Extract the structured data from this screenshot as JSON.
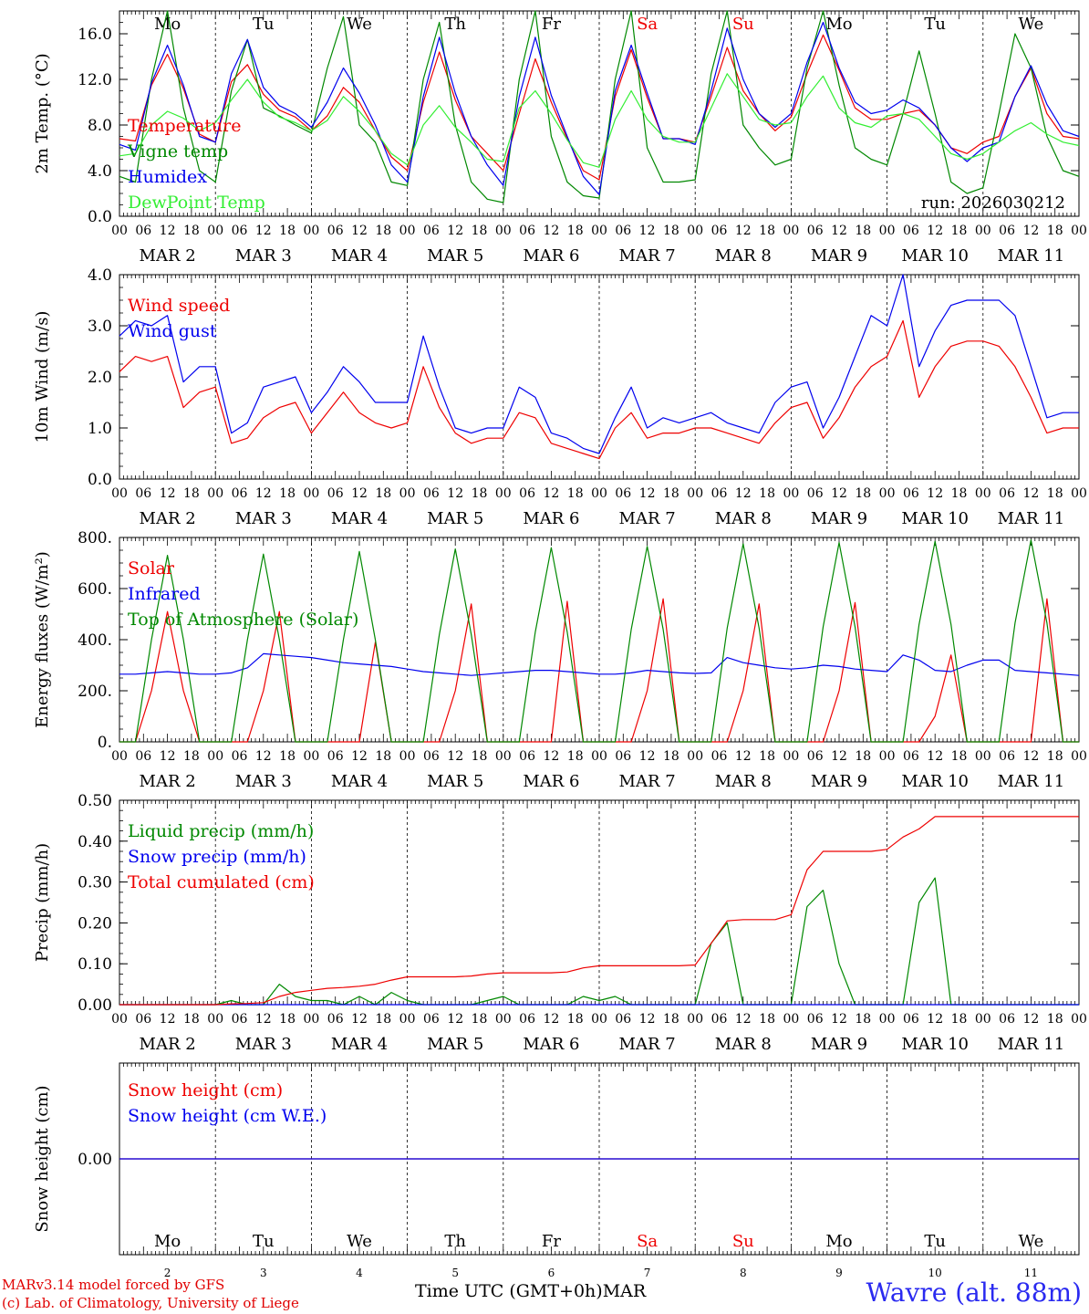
{
  "footer": {
    "credit_line1": "MARv3.14 model forced by GFS",
    "credit_line2": "(c) Lab. of Climatology, University of Liege",
    "xaxis_title": "Time UTC (GMT+0h)",
    "xaxis_month": "MAR",
    "station": "Wavre (alt. 88m)"
  },
  "colors": {
    "red": "#ee0000",
    "blue": "#0000ee",
    "green": "#008800",
    "lightgreen": "#33ee33",
    "weekend": "#ee0000"
  },
  "timeline": {
    "days": [
      {
        "weekday": "Mo",
        "date": "MAR 2",
        "num": "2",
        "weekend": false
      },
      {
        "weekday": "Tu",
        "date": "MAR 3",
        "num": "3",
        "weekend": false
      },
      {
        "weekday": "We",
        "date": "MAR 4",
        "num": "4",
        "weekend": false
      },
      {
        "weekday": "Th",
        "date": "MAR 5",
        "num": "5",
        "weekend": false
      },
      {
        "weekday": "Fr",
        "date": "MAR 6",
        "num": "6",
        "weekend": false
      },
      {
        "weekday": "Sa",
        "date": "MAR 7",
        "num": "7",
        "weekend": true
      },
      {
        "weekday": "Su",
        "date": "MAR 8",
        "num": "8",
        "weekend": true
      },
      {
        "weekday": "Mo",
        "date": "MAR 9",
        "num": "9",
        "weekend": false
      },
      {
        "weekday": "Tu",
        "date": "MAR 10",
        "num": "10",
        "weekend": false
      },
      {
        "weekday": "We",
        "date": "MAR 11",
        "num": "11",
        "weekend": false
      }
    ],
    "hour_ticks": [
      "00",
      "06",
      "12",
      "18"
    ],
    "final_tick": "00",
    "step_hours": 6
  },
  "chart_data": [
    {
      "type": "line",
      "id": "temp",
      "ylabel": "2m Temp. (°C)",
      "ylim": [
        0,
        18
      ],
      "yticks": [
        0,
        4,
        8,
        12,
        16
      ],
      "ytick_labels": [
        "0.0",
        "4.0",
        "8.0",
        "12.0",
        "16.0"
      ],
      "show_weekdays": true,
      "annotation": "run: 2026030212",
      "legend": [
        "Temperature",
        "Vigne temp",
        "Humidex",
        "DewPoint Temp"
      ],
      "series": [
        {
          "name": "Temperature",
          "color": "red",
          "values": [
            6.8,
            6.6,
            11.5,
            14.2,
            11.2,
            7.2,
            6.5,
            11.8,
            13.3,
            10.7,
            9.3,
            8.7,
            7.5,
            8.8,
            11.3,
            10.0,
            7.5,
            5.2,
            4.0,
            10.0,
            14.4,
            10.2,
            7.0,
            5.5,
            4.0,
            9.0,
            13.8,
            10.0,
            6.8,
            4.0,
            3.2,
            10.5,
            14.6,
            10.4,
            6.8,
            6.8,
            6.5,
            10.5,
            14.8,
            11.0,
            9.0,
            7.5,
            8.7,
            12.5,
            15.9,
            12.8,
            9.5,
            8.5,
            8.5,
            9.0,
            9.3,
            8.0,
            6.0,
            5.5,
            6.5,
            7.0,
            10.5,
            13.0,
            9.0,
            7.0,
            6.8
          ]
        },
        {
          "name": "Vigne temp",
          "color": "green",
          "values": [
            3.5,
            3.0,
            12.0,
            18.0,
            9.5,
            4.0,
            3.0,
            11.0,
            15.5,
            9.5,
            8.8,
            8.0,
            7.3,
            13.0,
            17.5,
            8.0,
            6.5,
            3.0,
            2.7,
            12.0,
            17.0,
            8.0,
            3.0,
            1.5,
            1.2,
            12.0,
            18.0,
            7.0,
            3.0,
            1.8,
            1.6,
            12.0,
            18.0,
            6.0,
            3.0,
            3.0,
            3.2,
            12.5,
            18.0,
            8.0,
            6.0,
            4.5,
            5.0,
            13.0,
            18.0,
            11.5,
            6.0,
            5.0,
            4.5,
            9.0,
            14.5,
            9.0,
            3.0,
            2.0,
            2.5,
            9.0,
            16.0,
            13.0,
            7.0,
            4.0,
            3.5
          ]
        },
        {
          "name": "Humidex",
          "color": "blue",
          "values": [
            6.3,
            5.8,
            11.7,
            15.0,
            11.5,
            7.0,
            6.5,
            12.5,
            15.5,
            11.3,
            9.7,
            9.0,
            7.8,
            10.0,
            13.0,
            10.8,
            8.0,
            4.5,
            3.0,
            10.5,
            15.7,
            10.8,
            7.0,
            4.5,
            2.7,
            10.5,
            15.7,
            10.6,
            7.0,
            3.5,
            1.9,
            11.0,
            15.0,
            10.8,
            6.8,
            6.8,
            6.3,
            11.0,
            16.5,
            12.0,
            9.0,
            7.8,
            9.0,
            13.5,
            17.0,
            13.0,
            10.0,
            9.0,
            9.3,
            10.2,
            9.5,
            8.0,
            6.0,
            4.8,
            6.0,
            6.5,
            10.5,
            13.2,
            9.8,
            7.5,
            7.0
          ]
        },
        {
          "name": "DewPoint Temp",
          "color": "lightgreen",
          "values": [
            5.3,
            5.5,
            8.0,
            9.2,
            8.6,
            7.5,
            8.2,
            10.2,
            12.0,
            10.0,
            8.7,
            8.2,
            7.5,
            8.4,
            10.5,
            9.2,
            7.5,
            5.5,
            4.5,
            8.0,
            9.7,
            7.8,
            6.5,
            5.0,
            4.8,
            9.5,
            11.0,
            9.0,
            6.7,
            4.7,
            4.3,
            8.5,
            11.0,
            8.5,
            7.0,
            6.5,
            6.5,
            9.5,
            12.5,
            10.5,
            8.5,
            8.0,
            8.2,
            10.5,
            12.3,
            9.5,
            8.2,
            7.8,
            8.8,
            9.0,
            8.5,
            7.0,
            5.5,
            5.0,
            5.5,
            6.5,
            7.5,
            8.2,
            7.2,
            6.5,
            6.2
          ]
        }
      ]
    },
    {
      "type": "line",
      "id": "wind",
      "ylabel": "10m Wind (m/s)",
      "ylim": [
        0,
        4
      ],
      "yticks": [
        0,
        1,
        2,
        3,
        4
      ],
      "ytick_labels": [
        "0.0",
        "1.0",
        "2.0",
        "3.0",
        "4.0"
      ],
      "legend": [
        "Wind speed",
        "Wind gust"
      ],
      "series": [
        {
          "name": "Wind speed",
          "color": "red",
          "values": [
            2.1,
            2.4,
            2.3,
            2.4,
            1.4,
            1.7,
            1.8,
            0.7,
            0.8,
            1.2,
            1.4,
            1.5,
            0.9,
            1.3,
            1.7,
            1.3,
            1.1,
            1.0,
            1.1,
            2.2,
            1.4,
            0.9,
            0.7,
            0.8,
            0.8,
            1.3,
            1.2,
            0.7,
            0.6,
            0.5,
            0.4,
            1.0,
            1.3,
            0.8,
            0.9,
            0.9,
            1.0,
            1.0,
            0.9,
            0.8,
            0.7,
            1.1,
            1.4,
            1.5,
            0.8,
            1.2,
            1.8,
            2.2,
            2.4,
            3.1,
            1.6,
            2.2,
            2.6,
            2.7,
            2.7,
            2.6,
            2.2,
            1.6,
            0.9,
            1.0,
            1.0
          ]
        },
        {
          "name": "Wind gust",
          "color": "blue",
          "values": [
            2.8,
            3.1,
            3.0,
            3.2,
            1.9,
            2.2,
            2.2,
            0.9,
            1.1,
            1.8,
            1.9,
            2.0,
            1.3,
            1.7,
            2.2,
            1.9,
            1.5,
            1.5,
            1.5,
            2.8,
            1.8,
            1.0,
            0.9,
            1.0,
            1.0,
            1.8,
            1.6,
            0.9,
            0.8,
            0.6,
            0.5,
            1.2,
            1.8,
            1.0,
            1.2,
            1.1,
            1.2,
            1.3,
            1.1,
            1.0,
            0.9,
            1.5,
            1.8,
            1.9,
            1.0,
            1.6,
            2.4,
            3.2,
            3.0,
            4.0,
            2.2,
            2.9,
            3.4,
            3.5,
            3.5,
            3.5,
            3.2,
            2.2,
            1.2,
            1.3,
            1.3
          ]
        }
      ]
    },
    {
      "type": "line",
      "id": "flux",
      "ylabel": "Energy fluxes (W/m²)",
      "ylim": [
        0,
        800
      ],
      "yticks": [
        0,
        200,
        400,
        600,
        800
      ],
      "ytick_labels": [
        "0.",
        "200.",
        "400.",
        "600.",
        "800."
      ],
      "legend": [
        "Solar",
        "Infrared",
        "Top of Atmosphere (Solar)"
      ],
      "series": [
        {
          "name": "Solar",
          "color": "red",
          "values": [
            0,
            0,
            200,
            510,
            200,
            0,
            0,
            0,
            0,
            200,
            510,
            0,
            0,
            0,
            0,
            0,
            390,
            0,
            0,
            0,
            0,
            200,
            540,
            0,
            0,
            0,
            0,
            0,
            550,
            0,
            0,
            0,
            0,
            200,
            560,
            0,
            0,
            0,
            0,
            200,
            540,
            0,
            0,
            0,
            0,
            200,
            545,
            0,
            0,
            0,
            0,
            100,
            340,
            0,
            0,
            0,
            0,
            0,
            560,
            0,
            0
          ]
        },
        {
          "name": "Infrared",
          "color": "blue",
          "values": [
            265,
            265,
            270,
            275,
            270,
            265,
            265,
            270,
            290,
            345,
            340,
            335,
            330,
            320,
            310,
            305,
            300,
            295,
            285,
            275,
            270,
            265,
            260,
            265,
            270,
            275,
            280,
            280,
            275,
            270,
            265,
            265,
            270,
            280,
            275,
            270,
            268,
            270,
            330,
            310,
            300,
            290,
            285,
            290,
            300,
            295,
            285,
            280,
            275,
            340,
            320,
            280,
            275,
            300,
            320,
            320,
            280,
            275,
            270,
            265,
            260
          ]
        },
        {
          "name": "Top of Atmosphere (Solar)",
          "color": "green",
          "values": [
            0,
            0,
            400,
            730,
            400,
            0,
            0,
            0,
            400,
            735,
            400,
            0,
            0,
            0,
            400,
            745,
            400,
            0,
            0,
            0,
            420,
            755,
            420,
            0,
            0,
            0,
            430,
            760,
            430,
            0,
            0,
            0,
            440,
            765,
            440,
            0,
            0,
            0,
            445,
            775,
            445,
            0,
            0,
            0,
            450,
            780,
            450,
            0,
            0,
            0,
            460,
            785,
            460,
            0,
            0,
            0,
            465,
            790,
            465,
            0,
            0
          ]
        }
      ]
    },
    {
      "type": "line",
      "id": "precip",
      "ylabel": "Precip (mm/h)",
      "ylim": [
        0,
        0.5
      ],
      "yticks": [
        0,
        0.1,
        0.2,
        0.3,
        0.4,
        0.5
      ],
      "ytick_labels": [
        "0.00",
        "0.10",
        "0.20",
        "0.30",
        "0.40",
        "0.50"
      ],
      "legend": [
        "Liquid precip (mm/h)",
        "Snow precip (mm/h)",
        "Total cumulated (cm)"
      ],
      "series": [
        {
          "name": "Liquid precip (mm/h)",
          "color": "green",
          "values": [
            0,
            0,
            0,
            0,
            0,
            0,
            0,
            0.01,
            0,
            0,
            0.05,
            0.02,
            0.01,
            0.01,
            0,
            0.02,
            0,
            0.03,
            0.01,
            0,
            0,
            0,
            0,
            0.01,
            0.02,
            0,
            0,
            0,
            0,
            0.02,
            0.01,
            0.02,
            0,
            0,
            0,
            0,
            0,
            0.15,
            0.2,
            0,
            0,
            0,
            0,
            0.24,
            0.28,
            0.1,
            0,
            0,
            0,
            0,
            0.25,
            0.31,
            0,
            0,
            0,
            0,
            0,
            0,
            0,
            0,
            0
          ]
        },
        {
          "name": "Snow precip (mm/h)",
          "color": "blue",
          "values": [
            0,
            0,
            0,
            0,
            0,
            0,
            0,
            0,
            0,
            0,
            0,
            0,
            0,
            0,
            0,
            0,
            0,
            0,
            0,
            0,
            0,
            0,
            0,
            0,
            0,
            0,
            0,
            0,
            0,
            0,
            0,
            0,
            0,
            0,
            0,
            0,
            0,
            0,
            0,
            0,
            0,
            0,
            0,
            0,
            0,
            0,
            0,
            0,
            0,
            0,
            0,
            0,
            0,
            0,
            0,
            0,
            0,
            0,
            0,
            0,
            0
          ]
        },
        {
          "name": "Total cumulated (cm)",
          "color": "red",
          "values": [
            0,
            0,
            0,
            0,
            0,
            0,
            0,
            0.002,
            0.003,
            0.005,
            0.02,
            0.03,
            0.035,
            0.04,
            0.042,
            0.045,
            0.05,
            0.06,
            0.068,
            0.068,
            0.068,
            0.068,
            0.07,
            0.075,
            0.078,
            0.078,
            0.078,
            0.078,
            0.08,
            0.09,
            0.095,
            0.095,
            0.095,
            0.095,
            0.095,
            0.095,
            0.097,
            0.15,
            0.205,
            0.208,
            0.208,
            0.208,
            0.22,
            0.33,
            0.375,
            0.375,
            0.375,
            0.375,
            0.38,
            0.41,
            0.43,
            0.46,
            0.46,
            0.46,
            0.46,
            0.46,
            0.46,
            0.46,
            0.46,
            0.46,
            0.46
          ]
        }
      ]
    },
    {
      "type": "line",
      "id": "snow",
      "ylabel": "Snow height (cm)",
      "ylim": [
        -1,
        1
      ],
      "yticks": [
        0
      ],
      "ytick_labels": [
        "0.00"
      ],
      "legend": [
        "Snow height (cm)",
        "Snow height (cm W.E.)"
      ],
      "series": [
        {
          "name": "Snow height (cm)",
          "color": "red",
          "values": [
            0,
            0
          ]
        },
        {
          "name": "Snow height (cm W.E.)",
          "color": "blue",
          "values": [
            0,
            0
          ]
        }
      ]
    }
  ]
}
